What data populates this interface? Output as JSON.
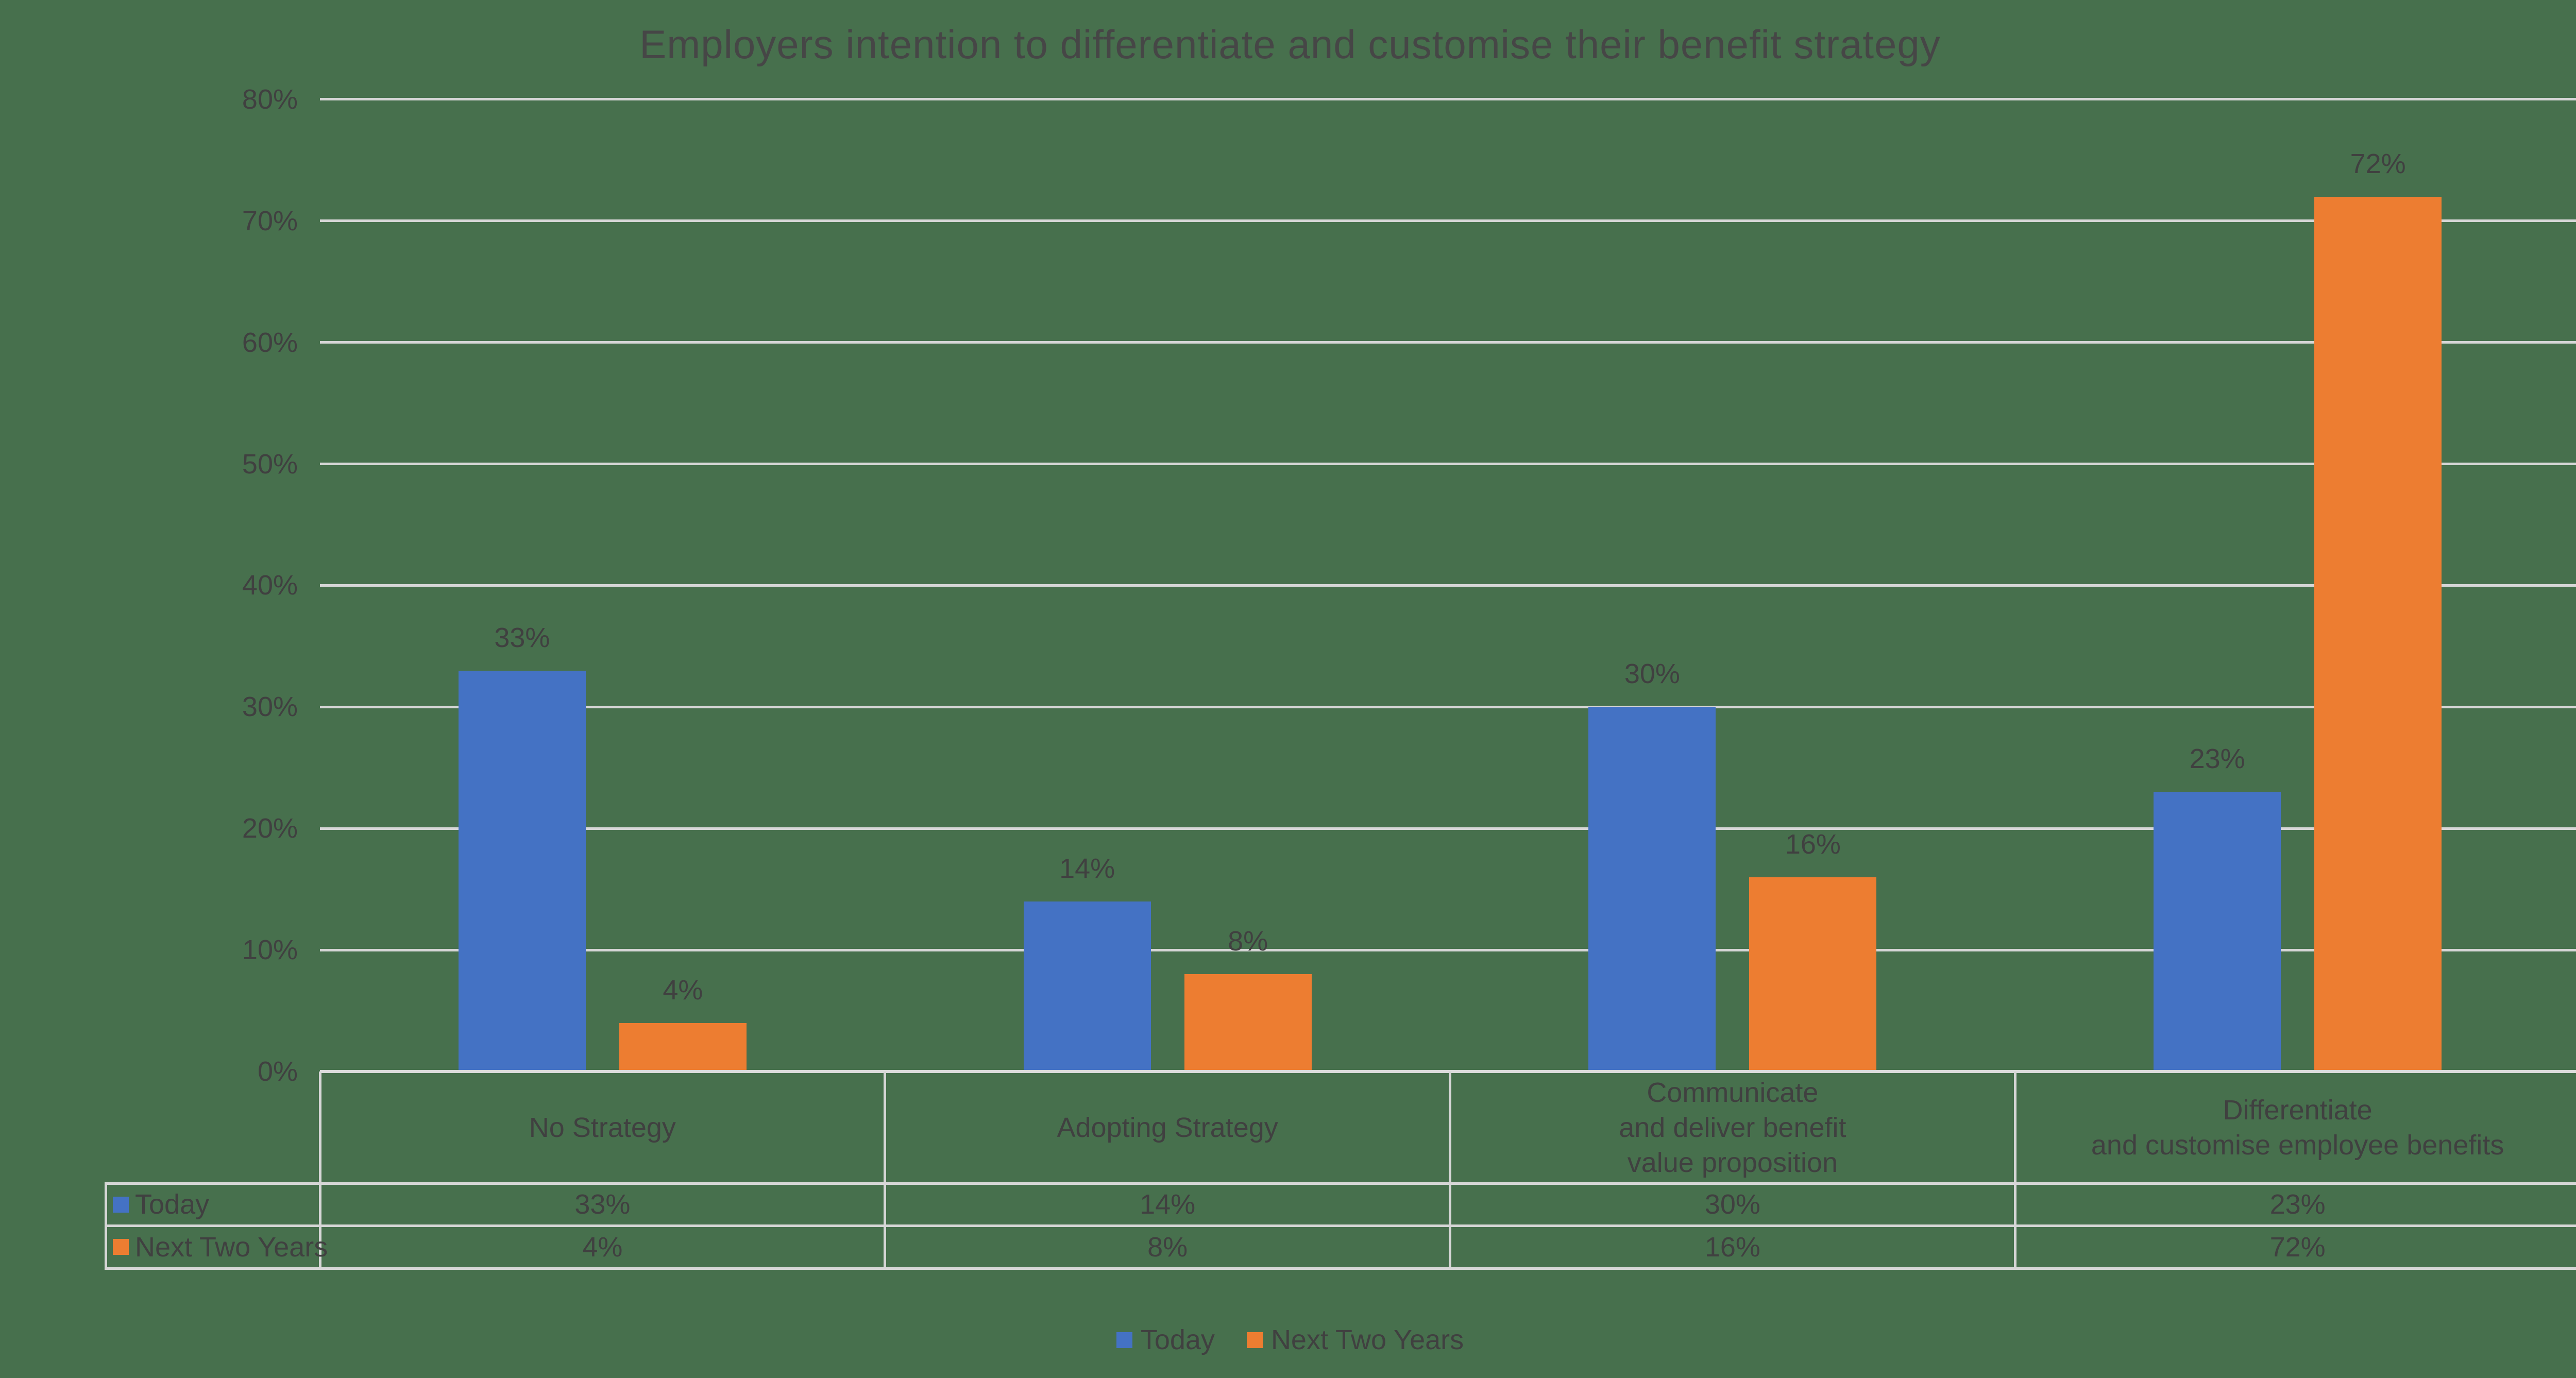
{
  "chart_data": {
    "type": "bar",
    "title": "Employers intention to differentiate and customise their benefit strategy",
    "categories": [
      [
        "No Strategy"
      ],
      [
        "Adopting Strategy"
      ],
      [
        "Communicate",
        "and deliver benefit",
        "value proposition"
      ],
      [
        "Differentiate",
        "and customise employee benefits"
      ]
    ],
    "series": [
      {
        "name": "Today",
        "color": "#4472c4",
        "values": [
          33,
          14,
          30,
          23
        ]
      },
      {
        "name": "Next Two Years",
        "color": "#ed7d31",
        "values": [
          4,
          8,
          16,
          72
        ]
      }
    ],
    "value_suffix": "%",
    "ylim": [
      0,
      80
    ],
    "ytick_step": 10,
    "ytick_labels": [
      "0%",
      "10%",
      "20%",
      "30%",
      "40%",
      "50%",
      "60%",
      "70%",
      "80%"
    ],
    "grid": true,
    "legend_position": "bottom",
    "legend": [
      "Today",
      "Next Two Years"
    ],
    "data_table": {
      "rows": [
        {
          "label": "Today",
          "values": [
            "33%",
            "14%",
            "30%",
            "23%"
          ]
        },
        {
          "label": "Next Two Years",
          "values": [
            "4%",
            "8%",
            "16%",
            "72%"
          ]
        }
      ]
    }
  },
  "colors": {
    "background": "#47704d",
    "gridline": "#d6d6d6",
    "axis_line": "#dcdcdc",
    "text": "#404040",
    "title_text": "#464646",
    "series_today": "#4472c4",
    "series_next_two_years": "#ed7d31"
  }
}
